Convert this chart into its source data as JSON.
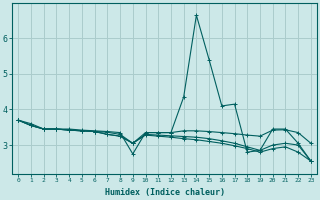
{
  "title": "",
  "xlabel": "Humidex (Indice chaleur)",
  "background_color": "#cce8e8",
  "grid_color": "#aacccc",
  "line_color": "#005f5f",
  "x_values": [
    0,
    1,
    2,
    3,
    4,
    5,
    6,
    7,
    8,
    9,
    10,
    11,
    12,
    13,
    14,
    15,
    16,
    17,
    18,
    19,
    20,
    21,
    22,
    23
  ],
  "series": [
    [
      3.7,
      3.6,
      3.45,
      3.45,
      3.45,
      3.42,
      3.4,
      3.38,
      3.35,
      2.75,
      3.35,
      3.35,
      3.35,
      4.35,
      6.65,
      5.4,
      4.1,
      4.15,
      2.8,
      2.85,
      3.45,
      3.45,
      3.05,
      2.55
    ],
    [
      3.7,
      3.55,
      3.45,
      3.45,
      3.42,
      3.4,
      3.38,
      3.36,
      3.3,
      3.05,
      3.35,
      3.35,
      3.35,
      3.4,
      3.4,
      3.38,
      3.35,
      3.32,
      3.28,
      3.25,
      3.42,
      3.43,
      3.35,
      3.05
    ],
    [
      3.7,
      3.55,
      3.45,
      3.45,
      3.42,
      3.4,
      3.38,
      3.3,
      3.25,
      3.05,
      3.3,
      3.28,
      3.26,
      3.24,
      3.22,
      3.18,
      3.12,
      3.05,
      2.95,
      2.85,
      3.0,
      3.05,
      3.0,
      2.55
    ],
    [
      3.7,
      3.55,
      3.45,
      3.45,
      3.42,
      3.4,
      3.38,
      3.3,
      3.25,
      3.05,
      3.28,
      3.25,
      3.22,
      3.18,
      3.15,
      3.1,
      3.05,
      2.98,
      2.9,
      2.8,
      2.9,
      2.95,
      2.8,
      2.55
    ]
  ],
  "ylim": [
    2.2,
    7.0
  ],
  "yticks": [
    3,
    4,
    5,
    6
  ],
  "xlim": [
    -0.5,
    23.5
  ],
  "xtick_labels": [
    "0",
    "1",
    "2",
    "3",
    "4",
    "5",
    "6",
    "7",
    "8",
    "9",
    "10",
    "11",
    "12",
    "13",
    "14",
    "15",
    "16",
    "17",
    "18",
    "19",
    "20",
    "21",
    "22",
    "23"
  ]
}
